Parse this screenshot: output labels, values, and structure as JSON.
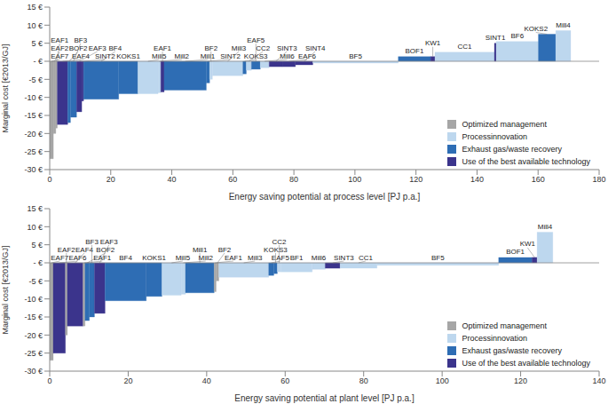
{
  "chart_data": [
    {
      "type": "bar",
      "x_label": "Energy saving potential at process level [PJ p.a.]",
      "y_label": "Marginal cost [€2013/GJ]",
      "categories": [
        "EAF7",
        "EAF2",
        "EAF1",
        "EAF4",
        "BOF2",
        "BF3",
        "EAF3",
        "SINT2",
        "BF4",
        "KOKS1",
        "Mill5",
        "Mill2",
        "EAF1",
        "Mill1",
        "SINT2",
        "BF2",
        "Mill3",
        "KOKS3",
        "CC2",
        "EAF5",
        "Mill6",
        "SINT3",
        "EAF6",
        "SINT4",
        "BF5",
        "BOF1",
        "KW1",
        "CC1",
        "SINT1",
        "BF6",
        "KOKS2",
        "Mill4"
      ],
      "widths": [
        1.2,
        0.8,
        0.5,
        3.4,
        0.9,
        2.0,
        1.7,
        0.6,
        11.5,
        6.3,
        6.6,
        0.9,
        1.1,
        13.8,
        1.1,
        0.9,
        10.0,
        1.1,
        1.7,
        2.9,
        2.9,
        4.3,
        4.3,
        5.7,
        28.0,
        10.6,
        1.4,
        19.5,
        0.6,
        13.8,
        5.7,
        4.9
      ],
      "values": [
        -27,
        -20,
        -18.5,
        -17.5,
        -17,
        -15.5,
        -14,
        -11,
        -10.5,
        -9,
        -9,
        -8.7,
        -8.5,
        -8,
        -6,
        -5,
        -4,
        -3.5,
        -2.5,
        -2.2,
        -1.8,
        -1.5,
        -1.5,
        -1,
        -0.5,
        1.3,
        1.3,
        2.5,
        5,
        5.5,
        7.5,
        8.5
      ],
      "groups": [
        "Optimized management",
        "Optimized management",
        "Optimized management",
        "Use of the best available technology",
        "Exhaust gas/waste recovery",
        "Exhaust gas/waste recovery",
        "Use of the best available technology",
        "Use of the best available technology",
        "Exhaust gas/waste recovery",
        "Exhaust gas/waste recovery",
        "Processinnovation",
        "Processinnovation",
        "Use of the best available technology",
        "Exhaust gas/waste recovery",
        "Exhaust gas/waste recovery",
        "Processinnovation",
        "Processinnovation",
        "Exhaust gas/waste recovery",
        "Processinnovation",
        "Exhaust gas/waste recovery",
        "Processinnovation",
        "Use of the best available technology",
        "Use of the best available technology",
        "Use of the best available technology",
        "Processinnovation",
        "Exhaust gas/waste recovery",
        "Use of the best available technology",
        "Processinnovation",
        "Use of the best available technology",
        "Processinnovation",
        "Exhaust gas/waste recovery",
        "Processinnovation"
      ],
      "series": [
        {
          "name": "Optimized management",
          "color": "#a6a6a6"
        },
        {
          "name": "Processinnovation",
          "color": "#bdd7ee"
        },
        {
          "name": "Exhaust gas/waste recovery",
          "color": "#2e6db4"
        },
        {
          "name": "Use of the best available technology",
          "color": "#3b348c"
        }
      ],
      "xlim": [
        0,
        180
      ],
      "xticks": [
        0,
        20,
        40,
        60,
        80,
        100,
        120,
        140,
        160,
        180
      ],
      "ylim": [
        -30,
        15
      ],
      "yticks": [
        {
          "value": -30,
          "label": "-30 €"
        },
        {
          "value": -25,
          "label": "-25 €"
        },
        {
          "value": -20,
          "label": "-20 €"
        },
        {
          "value": -15,
          "label": "-15 €"
        },
        {
          "value": -10,
          "label": "-10 €"
        },
        {
          "value": -5,
          "label": "-5 €"
        },
        {
          "value": 0,
          "label": "- €"
        },
        {
          "value": 5,
          "label": "5 €"
        },
        {
          "value": 10,
          "label": "10 €"
        },
        {
          "value": 15,
          "label": "15 €"
        }
      ],
      "grid": false,
      "legend": "lower right"
    },
    {
      "type": "bar",
      "x_label": "Energy saving potential at plant level [PJ p.a.]",
      "y_label": "Marginal cost [€2013/GJ]",
      "categories": [
        "EAF7",
        "EAF6",
        "EAF2",
        "EAF4",
        "EAF1",
        "BOF2",
        "BF3",
        "EAF3",
        "BF4",
        "KOKS1",
        "Mill5",
        "Mill2",
        "Mill1",
        "EAF1",
        "BF2",
        "Mill3",
        "EAF5",
        "KOKS3",
        "CC2",
        "BF1",
        "Mill6",
        "SINT3",
        "CC1",
        "BF5",
        "BOF1",
        "KW1",
        "Mill4"
      ],
      "widths": [
        0.9,
        3.1,
        0.5,
        4.0,
        0.5,
        1.1,
        1.3,
        2.7,
        10.5,
        4.0,
        4.9,
        1.1,
        7.3,
        0.5,
        0.7,
        12.7,
        1.3,
        0.9,
        0.9,
        8.0,
        3.3,
        3.8,
        9.4,
        31.0,
        8.5,
        1.3,
        4.0
      ],
      "values": [
        -27,
        -25,
        -20,
        -17.5,
        -17.5,
        -16,
        -15,
        -14,
        -10.5,
        -9.3,
        -9,
        -8.7,
        -8.3,
        -8,
        -5,
        -4,
        -3.5,
        -3,
        -2.5,
        -2.5,
        -1.8,
        -1.5,
        -1.5,
        -0.7,
        1.5,
        1.5,
        8.5
      ],
      "groups": [
        "Optimized management",
        "Use of the best available technology",
        "Optimized management",
        "Use of the best available technology",
        "Optimized management",
        "Exhaust gas/waste recovery",
        "Exhaust gas/waste recovery",
        "Use of the best available technology",
        "Exhaust gas/waste recovery",
        "Exhaust gas/waste recovery",
        "Processinnovation",
        "Processinnovation",
        "Exhaust gas/waste recovery",
        "Optimized management",
        "Optimized management",
        "Processinnovation",
        "Exhaust gas/waste recovery",
        "Exhaust gas/waste recovery",
        "Processinnovation",
        "Processinnovation",
        "Processinnovation",
        "Use of the best available technology",
        "Processinnovation",
        "Processinnovation",
        "Exhaust gas/waste recovery",
        "Use of the best available technology",
        "Processinnovation"
      ],
      "series": [
        {
          "name": "Optimized management",
          "color": "#a6a6a6"
        },
        {
          "name": "Processinnovation",
          "color": "#bdd7ee"
        },
        {
          "name": "Exhaust gas/waste recovery",
          "color": "#2e6db4"
        },
        {
          "name": "Use of the best available technology",
          "color": "#3b348c"
        }
      ],
      "xlim": [
        0,
        140
      ],
      "xticks": [
        0,
        20,
        40,
        60,
        80,
        100,
        120,
        140
      ],
      "ylim": [
        -30,
        15
      ],
      "yticks": [
        {
          "value": -30,
          "label": "-30 €"
        },
        {
          "value": -25,
          "label": "-25 €"
        },
        {
          "value": -20,
          "label": "-20 €"
        },
        {
          "value": -15,
          "label": "-15 €"
        },
        {
          "value": -10,
          "label": "-10 €"
        },
        {
          "value": -5,
          "label": "-5 €"
        },
        {
          "value": 0,
          "label": "- €"
        },
        {
          "value": 5,
          "label": "5 €"
        },
        {
          "value": 10,
          "label": "10 €"
        },
        {
          "value": 15,
          "label": "15 €"
        }
      ],
      "grid": false,
      "legend": "lower right"
    }
  ]
}
